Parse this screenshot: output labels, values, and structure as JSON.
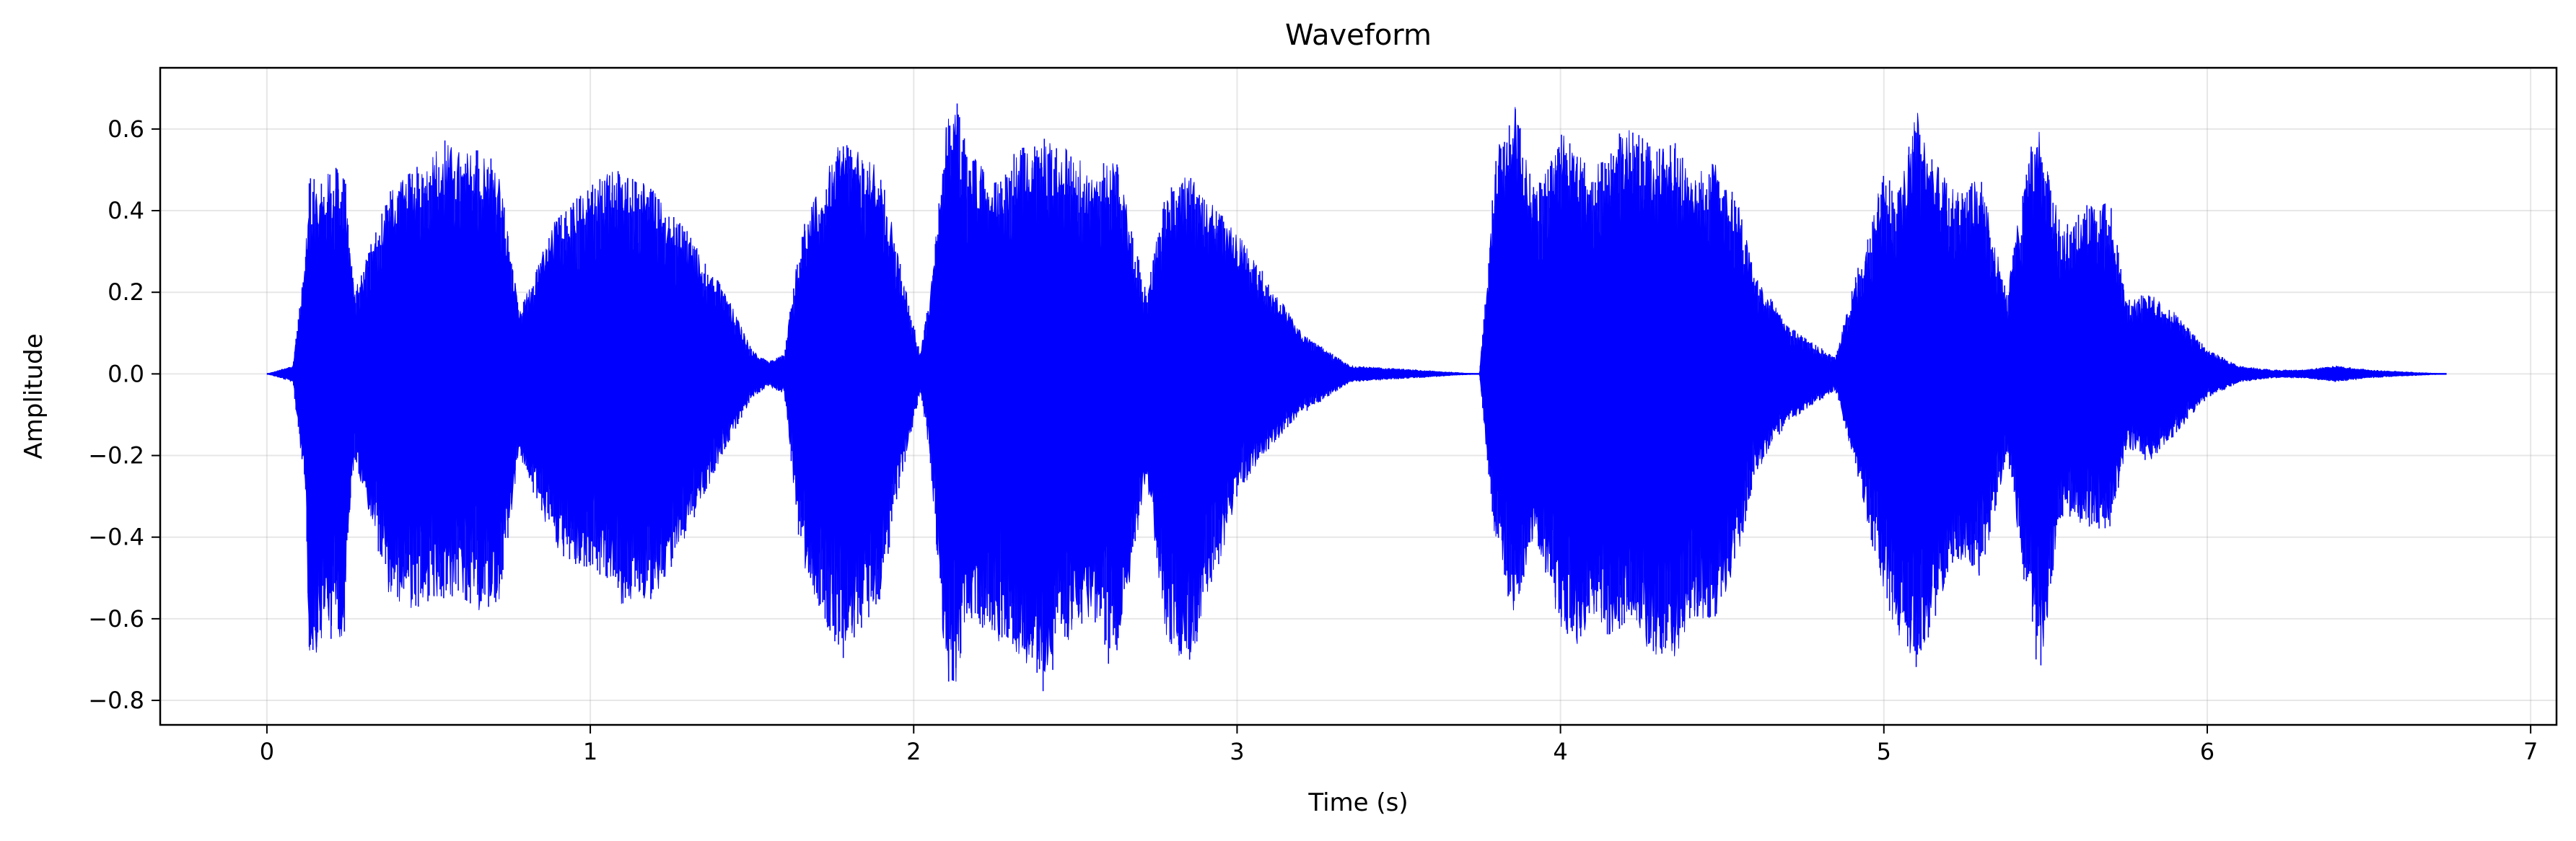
{
  "chart_data": {
    "type": "line",
    "title": "Waveform",
    "xlabel": "Time (s)",
    "ylabel": "Amplitude",
    "xlim": [
      -0.33,
      7.08
    ],
    "ylim": [
      -0.86,
      0.75
    ],
    "xticks": [
      0,
      1,
      2,
      3,
      4,
      5,
      6,
      7
    ],
    "xtick_labels": [
      "0",
      "1",
      "2",
      "3",
      "4",
      "5",
      "6",
      "7"
    ],
    "yticks": [
      -0.8,
      -0.6,
      -0.4,
      -0.2,
      0.0,
      0.2,
      0.4,
      0.6
    ],
    "ytick_labels": [
      "−0.8",
      "−0.6",
      "−0.4",
      "−0.2",
      "0.0",
      "0.2",
      "0.4",
      "0.6"
    ],
    "grid": true,
    "legend": "none",
    "duration_s": 6.74,
    "series": [
      {
        "color": "#0000ff",
        "envelope": {
          "time": [
            0.0,
            0.08,
            0.12,
            0.13,
            0.2,
            0.24,
            0.27,
            0.38,
            0.45,
            0.54,
            0.6,
            0.68,
            0.72,
            0.78,
            0.9,
            1.05,
            1.1,
            1.2,
            1.3,
            1.42,
            1.5,
            1.55,
            1.6,
            1.65,
            1.72,
            1.78,
            1.82,
            1.9,
            1.95,
            2.02,
            2.05,
            2.1,
            2.13,
            2.17,
            2.25,
            2.32,
            2.4,
            2.48,
            2.55,
            2.62,
            2.72,
            2.78,
            2.85,
            2.92,
            3.0,
            3.08,
            3.2,
            3.35,
            3.75,
            3.8,
            3.86,
            3.92,
            4.0,
            4.05,
            4.1,
            4.15,
            4.22,
            4.3,
            4.36,
            4.4,
            4.48,
            4.55,
            4.6,
            4.7,
            4.85,
            4.9,
            5.0,
            5.05,
            5.1,
            5.18,
            5.22,
            5.3,
            5.38,
            5.45,
            5.48,
            5.55,
            5.62,
            5.7,
            5.75,
            5.82,
            5.9,
            6.0,
            6.1,
            6.2,
            6.3,
            6.4,
            6.5,
            6.74
          ],
          "upper": [
            0.0,
            0.02,
            0.3,
            0.48,
            0.5,
            0.52,
            0.2,
            0.45,
            0.5,
            0.58,
            0.55,
            0.55,
            0.5,
            0.15,
            0.4,
            0.5,
            0.5,
            0.45,
            0.35,
            0.2,
            0.06,
            0.03,
            0.05,
            0.35,
            0.48,
            0.58,
            0.55,
            0.5,
            0.3,
            0.05,
            0.2,
            0.62,
            0.68,
            0.55,
            0.48,
            0.55,
            0.58,
            0.55,
            0.5,
            0.55,
            0.2,
            0.45,
            0.5,
            0.42,
            0.35,
            0.25,
            0.1,
            0.02,
            0.0,
            0.55,
            0.66,
            0.45,
            0.6,
            0.55,
            0.5,
            0.58,
            0.6,
            0.55,
            0.58,
            0.48,
            0.52,
            0.42,
            0.25,
            0.12,
            0.04,
            0.2,
            0.5,
            0.45,
            0.65,
            0.5,
            0.45,
            0.48,
            0.2,
            0.55,
            0.6,
            0.35,
            0.42,
            0.42,
            0.18,
            0.2,
            0.15,
            0.06,
            0.02,
            0.01,
            0.01,
            0.02,
            0.01,
            0.0
          ],
          "lower": [
            0.0,
            -0.02,
            -0.3,
            -0.7,
            -0.65,
            -0.65,
            -0.2,
            -0.55,
            -0.58,
            -0.55,
            -0.55,
            -0.6,
            -0.55,
            -0.2,
            -0.45,
            -0.5,
            -0.58,
            -0.55,
            -0.4,
            -0.18,
            -0.06,
            -0.03,
            -0.05,
            -0.45,
            -0.6,
            -0.7,
            -0.65,
            -0.55,
            -0.3,
            -0.05,
            -0.2,
            -0.75,
            -0.77,
            -0.6,
            -0.65,
            -0.7,
            -0.78,
            -0.65,
            -0.6,
            -0.75,
            -0.25,
            -0.65,
            -0.72,
            -0.55,
            -0.3,
            -0.2,
            -0.1,
            -0.02,
            0.0,
            -0.45,
            -0.6,
            -0.4,
            -0.62,
            -0.68,
            -0.6,
            -0.65,
            -0.6,
            -0.72,
            -0.7,
            -0.6,
            -0.6,
            -0.45,
            -0.25,
            -0.12,
            -0.04,
            -0.2,
            -0.55,
            -0.65,
            -0.73,
            -0.55,
            -0.45,
            -0.5,
            -0.2,
            -0.6,
            -0.75,
            -0.35,
            -0.38,
            -0.38,
            -0.18,
            -0.22,
            -0.15,
            -0.06,
            -0.02,
            -0.01,
            -0.01,
            -0.02,
            -0.01,
            0.0
          ]
        }
      }
    ]
  }
}
